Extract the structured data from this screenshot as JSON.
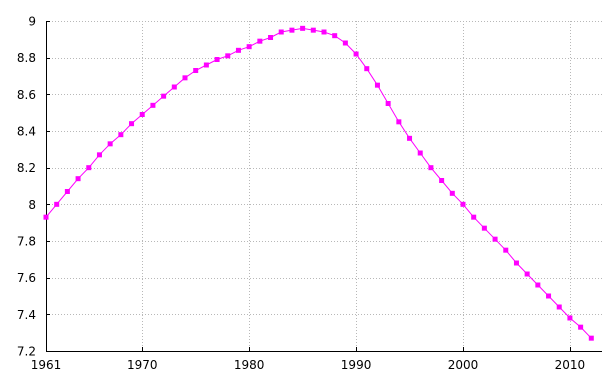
{
  "chart_data": {
    "type": "line",
    "title": "",
    "xlabel": "",
    "ylabel": "",
    "xlim": [
      1961,
      2013
    ],
    "ylim": [
      7.2,
      9.0
    ],
    "grid": true,
    "legend": "none",
    "line_color": "#ff00ff",
    "marker_color": "#ff00ff",
    "x_ticks": [
      1961,
      1970,
      1980,
      1990,
      2000,
      2010
    ],
    "x_tick_labels": [
      "1961",
      "1970",
      "1980",
      "1990",
      "2000",
      "2010"
    ],
    "y_ticks": [
      7.2,
      7.4,
      7.6,
      7.8,
      8.0,
      8.2,
      8.4,
      8.6,
      8.8,
      9.0
    ],
    "y_tick_labels": [
      "7.2",
      "7.4",
      "7.6",
      "7.8",
      "8",
      "8.2",
      "8.4",
      "8.6",
      "8.8",
      "9"
    ],
    "series": [
      {
        "x": [
          1961,
          1962,
          1963,
          1964,
          1965,
          1966,
          1967,
          1968,
          1969,
          1970,
          1971,
          1972,
          1973,
          1974,
          1975,
          1976,
          1977,
          1978,
          1979,
          1980,
          1981,
          1982,
          1983,
          1984,
          1985,
          1986,
          1987,
          1988,
          1989,
          1990,
          1991,
          1992,
          1993,
          1994,
          1995,
          1996,
          1997,
          1998,
          1999,
          2000,
          2001,
          2002,
          2003,
          2004,
          2005,
          2006,
          2007,
          2008,
          2009,
          2010,
          2011,
          2012
        ],
        "values": [
          7.93,
          8.0,
          8.07,
          8.14,
          8.2,
          8.27,
          8.33,
          8.38,
          8.44,
          8.49,
          8.54,
          8.59,
          8.64,
          8.69,
          8.73,
          8.76,
          8.79,
          8.81,
          8.84,
          8.86,
          8.89,
          8.91,
          8.94,
          8.95,
          8.96,
          8.95,
          8.94,
          8.92,
          8.88,
          8.82,
          8.74,
          8.65,
          8.55,
          8.45,
          8.36,
          8.28,
          8.2,
          8.13,
          8.06,
          8.0,
          7.93,
          7.87,
          7.81,
          7.75,
          7.68,
          7.62,
          7.56,
          7.5,
          7.44,
          7.38,
          7.33,
          7.27
        ]
      }
    ]
  }
}
